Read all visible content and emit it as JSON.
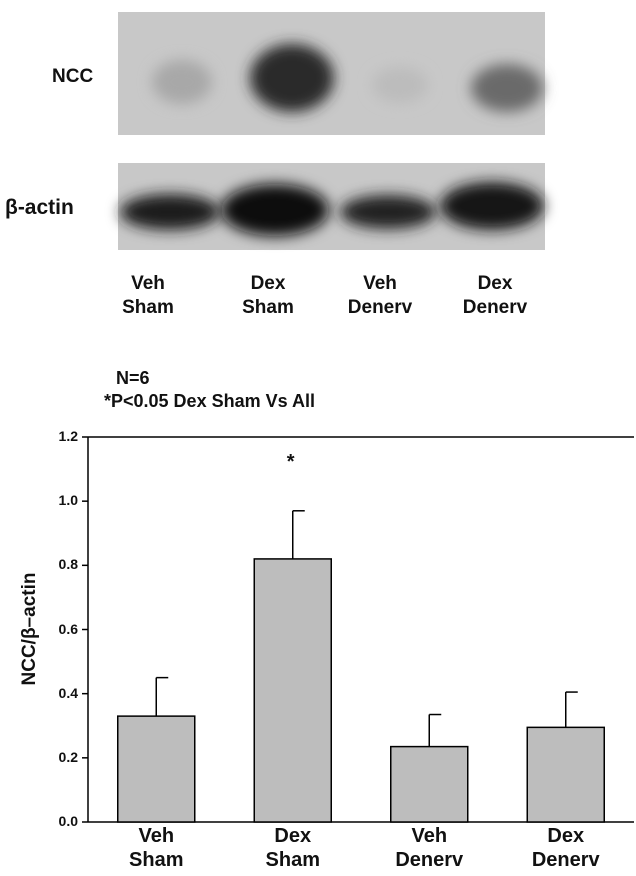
{
  "blot": {
    "labels": [
      "NCC",
      "β-actin"
    ],
    "lanes": [
      "Veh\nSham",
      "Dex\nSham",
      "Veh\nDenerv",
      "Dex\nDenerv"
    ]
  },
  "chart_data": {
    "type": "bar",
    "title": "N=6",
    "subtitle": "*P<0.05 Dex Sham Vs All",
    "y_label": "NCC/β–actin",
    "categories": [
      "Veh\nSham",
      "Dex\nSham",
      "Veh\nDenerv",
      "Dex\nDenerv"
    ],
    "values": [
      0.33,
      0.82,
      0.235,
      0.295
    ],
    "errors": [
      0.12,
      0.15,
      0.1,
      0.11
    ],
    "annotations": [
      {
        "category": 1,
        "text": "*"
      }
    ],
    "color": "#bdbdbd",
    "ylim": [
      0,
      1.2
    ],
    "yticks": [
      {
        "value": 0,
        "label": "0.0"
      },
      0.2,
      0.4,
      0.6,
      0.8,
      {
        "value": 1,
        "label": "1.0"
      },
      1.2
    ]
  }
}
